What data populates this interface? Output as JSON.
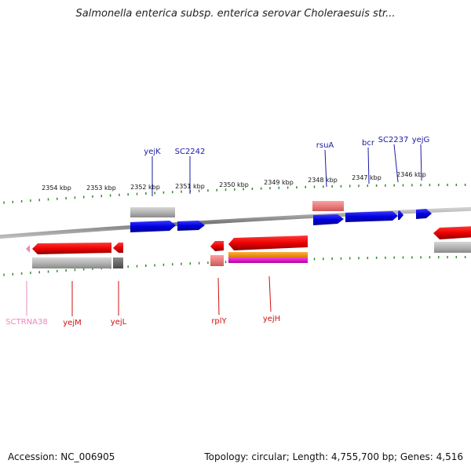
{
  "title": "Salmonella enterica subsp. enterica serovar Choleraesuis str...",
  "footer": {
    "accession": "Accession: NC_006905",
    "info": "Topology: circular; Length: 4,755,700 bp; Genes: 4,516"
  },
  "colors": {
    "forward_gene": "#0000dd",
    "reverse_gene": "#ee0000",
    "label_forward": "#1a1aa6",
    "label_reverse": "#cc1111",
    "trna": "#ee88bb",
    "tick": "#2e8b2e",
    "backbone": "#888888"
  },
  "ruler_labels": [
    "2354 kbp",
    "2353 kbp",
    "2352 kbp",
    "2351 kbp",
    "2350 kbp",
    "2349 kbp",
    "2348 kbp",
    "2347 kbp",
    "2346 kbp"
  ],
  "forward_genes": [
    "yejK",
    "SC2242",
    "rsuA",
    "bcr",
    "SC2237",
    "yejG"
  ],
  "reverse_genes": [
    "SCTRNA38",
    "yejM",
    "yejL",
    "rplY",
    "yejH"
  ]
}
